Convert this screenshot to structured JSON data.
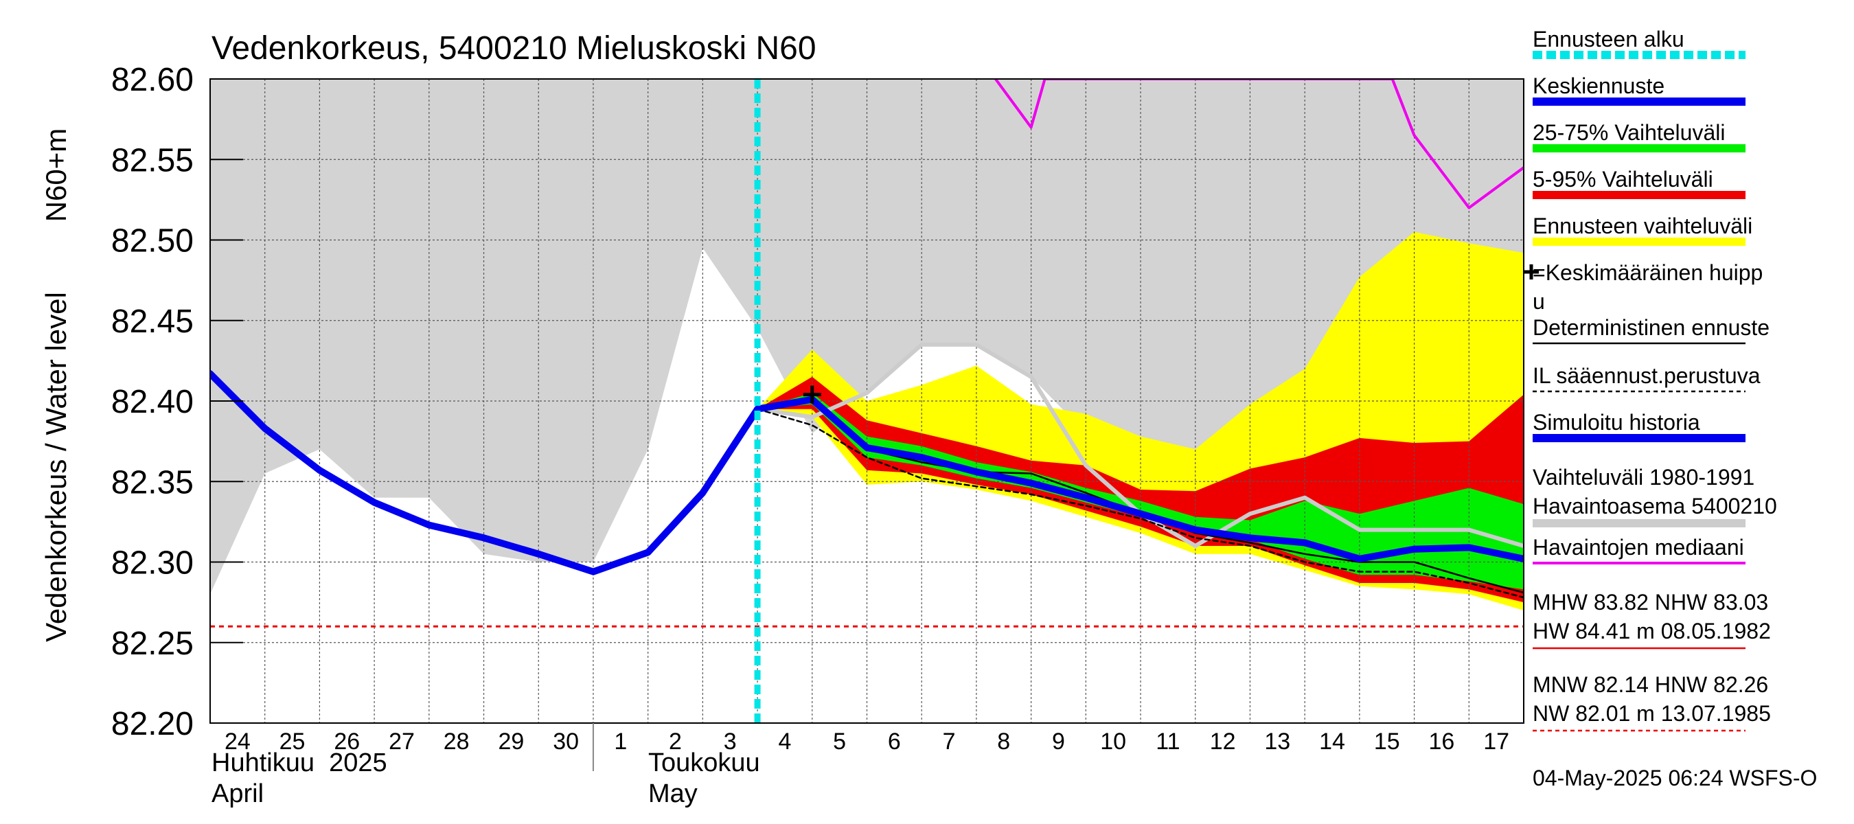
{
  "chart_data": {
    "type": "area",
    "title": "Vedenkorkeus, 5400210 Mieluskoski N60",
    "ylabel": "Vedenkorkeus / Water level",
    "yunit": "N60+m",
    "ylim": [
      82.2,
      82.6
    ],
    "yticks": [
      "82.60",
      "82.55",
      "82.50",
      "82.45",
      "82.40",
      "82.35",
      "82.30",
      "82.25",
      "82.20"
    ],
    "xlim": [
      0,
      24
    ],
    "x_tick_labels": [
      "24",
      "25",
      "26",
      "27",
      "28",
      "29",
      "30",
      "1",
      "2",
      "3",
      "4",
      "5",
      "6",
      "7",
      "8",
      "9",
      "10",
      "11",
      "12",
      "13",
      "14",
      "15",
      "16",
      "17"
    ],
    "month_labels": [
      {
        "fi": "Huhtikuu  2025",
        "en": "April"
      },
      {
        "fi": "Toukokuu",
        "en": "May"
      }
    ],
    "forecast_start_x": 10,
    "grid": true,
    "timestamp": "04-May-2025 06:24 WSFS-O",
    "colors": {
      "background_band": "#d3d3d3",
      "forecast_start": "#00e5e5",
      "mean_forecast": "#0000ee",
      "band_25_75": "#00ee00",
      "band_5_95": "#ee0000",
      "forecast_range": "#ffff00",
      "observed_median": "#ee00ee",
      "station_range": "#cccccc",
      "hnw_line": "#ee0000"
    },
    "history_band": {
      "x": [
        0,
        1,
        2,
        3,
        4,
        5,
        6,
        7,
        8,
        9,
        10,
        11,
        12,
        13,
        14,
        15,
        16,
        17,
        18,
        19,
        20,
        21,
        22,
        23,
        24
      ],
      "lower": [
        82.28,
        82.355,
        82.37,
        82.34,
        82.34,
        82.305,
        82.3,
        82.3,
        82.37,
        82.495,
        82.445,
        82.38,
        82.405,
        82.435,
        82.435,
        82.415,
        82.38,
        82.36,
        82.35,
        82.37,
        82.39,
        82.405,
        82.42,
        82.44,
        82.46
      ],
      "upper": [
        82.6,
        82.6,
        82.6,
        82.6,
        82.6,
        82.6,
        82.6,
        82.6,
        82.6,
        82.6,
        82.6,
        82.6,
        82.6,
        82.6,
        82.6,
        82.6,
        82.6,
        82.6,
        82.6,
        82.6,
        82.6,
        82.6,
        82.6,
        82.6,
        82.6
      ]
    },
    "forecast_range_band": {
      "x": [
        10,
        11,
        12,
        13,
        14,
        15,
        16,
        17,
        18,
        19,
        20,
        21,
        22,
        23,
        24
      ],
      "lower": [
        82.395,
        82.39,
        82.348,
        82.35,
        82.345,
        82.338,
        82.328,
        82.318,
        82.305,
        82.305,
        82.295,
        82.285,
        82.283,
        82.28,
        82.27
      ],
      "upper": [
        82.395,
        82.432,
        82.4,
        82.41,
        82.422,
        82.398,
        82.392,
        82.378,
        82.37,
        82.398,
        82.42,
        82.477,
        82.505,
        82.498,
        82.492
      ]
    },
    "series": [
      {
        "name": "5-95% Vaihteluväli",
        "kind": "band",
        "x": [
          10,
          11,
          12,
          13,
          14,
          15,
          16,
          17,
          18,
          19,
          20,
          21,
          22,
          23,
          24
        ],
        "lower": [
          82.395,
          82.395,
          82.357,
          82.355,
          82.348,
          82.342,
          82.332,
          82.322,
          82.31,
          82.31,
          82.298,
          82.287,
          82.287,
          82.283,
          82.275
        ],
        "upper": [
          82.395,
          82.415,
          82.388,
          82.38,
          82.372,
          82.363,
          82.36,
          82.345,
          82.344,
          82.358,
          82.365,
          82.377,
          82.374,
          82.375,
          82.404
        ]
      },
      {
        "name": "25-75% Vaihteluväli",
        "kind": "band",
        "x": [
          10,
          11,
          12,
          13,
          14,
          15,
          16,
          17,
          18,
          19,
          20,
          21,
          22,
          23,
          24
        ],
        "lower": [
          82.395,
          82.398,
          82.365,
          82.36,
          82.352,
          82.346,
          82.337,
          82.328,
          82.318,
          82.314,
          82.302,
          82.292,
          82.292,
          82.288,
          82.283
        ],
        "upper": [
          82.395,
          82.405,
          82.378,
          82.372,
          82.362,
          82.356,
          82.346,
          82.338,
          82.328,
          82.326,
          82.338,
          82.33,
          82.338,
          82.346,
          82.336
        ]
      },
      {
        "name": "Vaihteluväli 1980-1991  Havaintoasema 5400210",
        "kind": "line",
        "x": [
          10,
          11,
          12,
          13,
          14,
          15,
          16,
          17,
          18,
          19,
          20,
          21,
          22,
          23,
          24
        ],
        "y": [
          82.395,
          82.39,
          82.405,
          82.435,
          82.435,
          82.415,
          82.36,
          82.33,
          82.31,
          82.33,
          82.34,
          82.32,
          82.32,
          82.32,
          82.31
        ]
      },
      {
        "name": "Havaintojen mediaani",
        "kind": "line",
        "x": [
          14.35,
          15,
          15.25,
          21.6,
          22,
          23,
          24
        ],
        "y": [
          82.6,
          82.57,
          82.6,
          82.6,
          82.565,
          82.52,
          82.545
        ]
      },
      {
        "name": "Deterministinen ennuste",
        "kind": "line",
        "x": [
          10,
          11,
          12,
          13,
          14,
          15,
          16,
          17,
          18,
          19,
          20,
          21,
          22,
          23,
          24
        ],
        "y": [
          82.395,
          82.4,
          82.37,
          82.362,
          82.356,
          82.355,
          82.343,
          82.33,
          82.318,
          82.312,
          82.305,
          82.3,
          82.3,
          82.29,
          82.281
        ]
      },
      {
        "name": "IL sääennust.perustuva",
        "kind": "dashed",
        "x": [
          10,
          11,
          12,
          13,
          14,
          15,
          16,
          17,
          18,
          19,
          20,
          21,
          22,
          23,
          24
        ],
        "y": [
          82.395,
          82.385,
          82.365,
          82.352,
          82.347,
          82.342,
          82.335,
          82.327,
          82.315,
          82.31,
          82.3,
          82.294,
          82.294,
          82.287,
          82.278
        ]
      },
      {
        "name": "Simuloitu historia",
        "kind": "line",
        "x": [
          0,
          1,
          2,
          3,
          4,
          5,
          6,
          7,
          8,
          9,
          10
        ],
        "y": [
          82.417,
          82.383,
          82.357,
          82.337,
          82.323,
          82.315,
          82.305,
          82.294,
          82.306,
          82.343,
          82.395
        ]
      },
      {
        "name": "Keskiennuste",
        "kind": "line",
        "x": [
          10,
          11,
          12,
          13,
          14,
          15,
          16,
          17,
          18,
          19,
          20,
          21,
          22,
          23,
          24
        ],
        "y": [
          82.395,
          82.401,
          82.371,
          82.365,
          82.356,
          82.349,
          82.34,
          82.33,
          82.32,
          82.315,
          82.312,
          82.302,
          82.308,
          82.309,
          82.302
        ]
      }
    ],
    "mean_peak": {
      "label": "=Keskimääräinen huippu",
      "x": 11,
      "y": 82.404
    },
    "hnw_level": 82.26,
    "legend": {
      "placement": "right",
      "items": [
        {
          "label": "Ennusteen alku",
          "symbol": "dashed-thick",
          "color": "#00e5e5"
        },
        {
          "label": "Keskiennuste",
          "symbol": "line-thick",
          "color": "#0000ee"
        },
        {
          "label": "25-75% Vaihteluväli",
          "symbol": "line-thick",
          "color": "#00ee00"
        },
        {
          "label": "5-95% Vaihteluväli",
          "symbol": "line-thick",
          "color": "#ee0000"
        },
        {
          "label": "Ennusteen vaihteluväli",
          "symbol": "line-thick",
          "color": "#ffff00"
        },
        {
          "label": "=Keskimääräinen huipp",
          "label2": "u",
          "symbol": "cross",
          "color": "#000000"
        },
        {
          "label": "Deterministinen ennuste",
          "symbol": "line-thin",
          "color": "#000000"
        },
        {
          "label": "IL sääennust.perustuva",
          "symbol": "dashed-thin",
          "color": "#000000"
        },
        {
          "label": "Simuloitu historia",
          "symbol": "line-thick",
          "color": "#0000ee"
        },
        {
          "label": "Vaihteluväli 1980-1991",
          "label2": " Havaintoasema 5400210",
          "symbol": "line-thick",
          "color": "#cccccc"
        },
        {
          "label": "Havaintojen mediaani",
          "symbol": "line-medium",
          "color": "#ee00ee"
        },
        {
          "label": "MHW  83.82 NHW  83.03",
          "label2": "HW  84.41 m 08.05.1982",
          "symbol": "line-thin",
          "color": "#ee0000"
        },
        {
          "label": "MNW  82.14 HNW  82.26",
          "label2": "NW  82.01 m 13.07.1985",
          "symbol": "dashed-thin",
          "color": "#ee0000"
        }
      ]
    }
  }
}
